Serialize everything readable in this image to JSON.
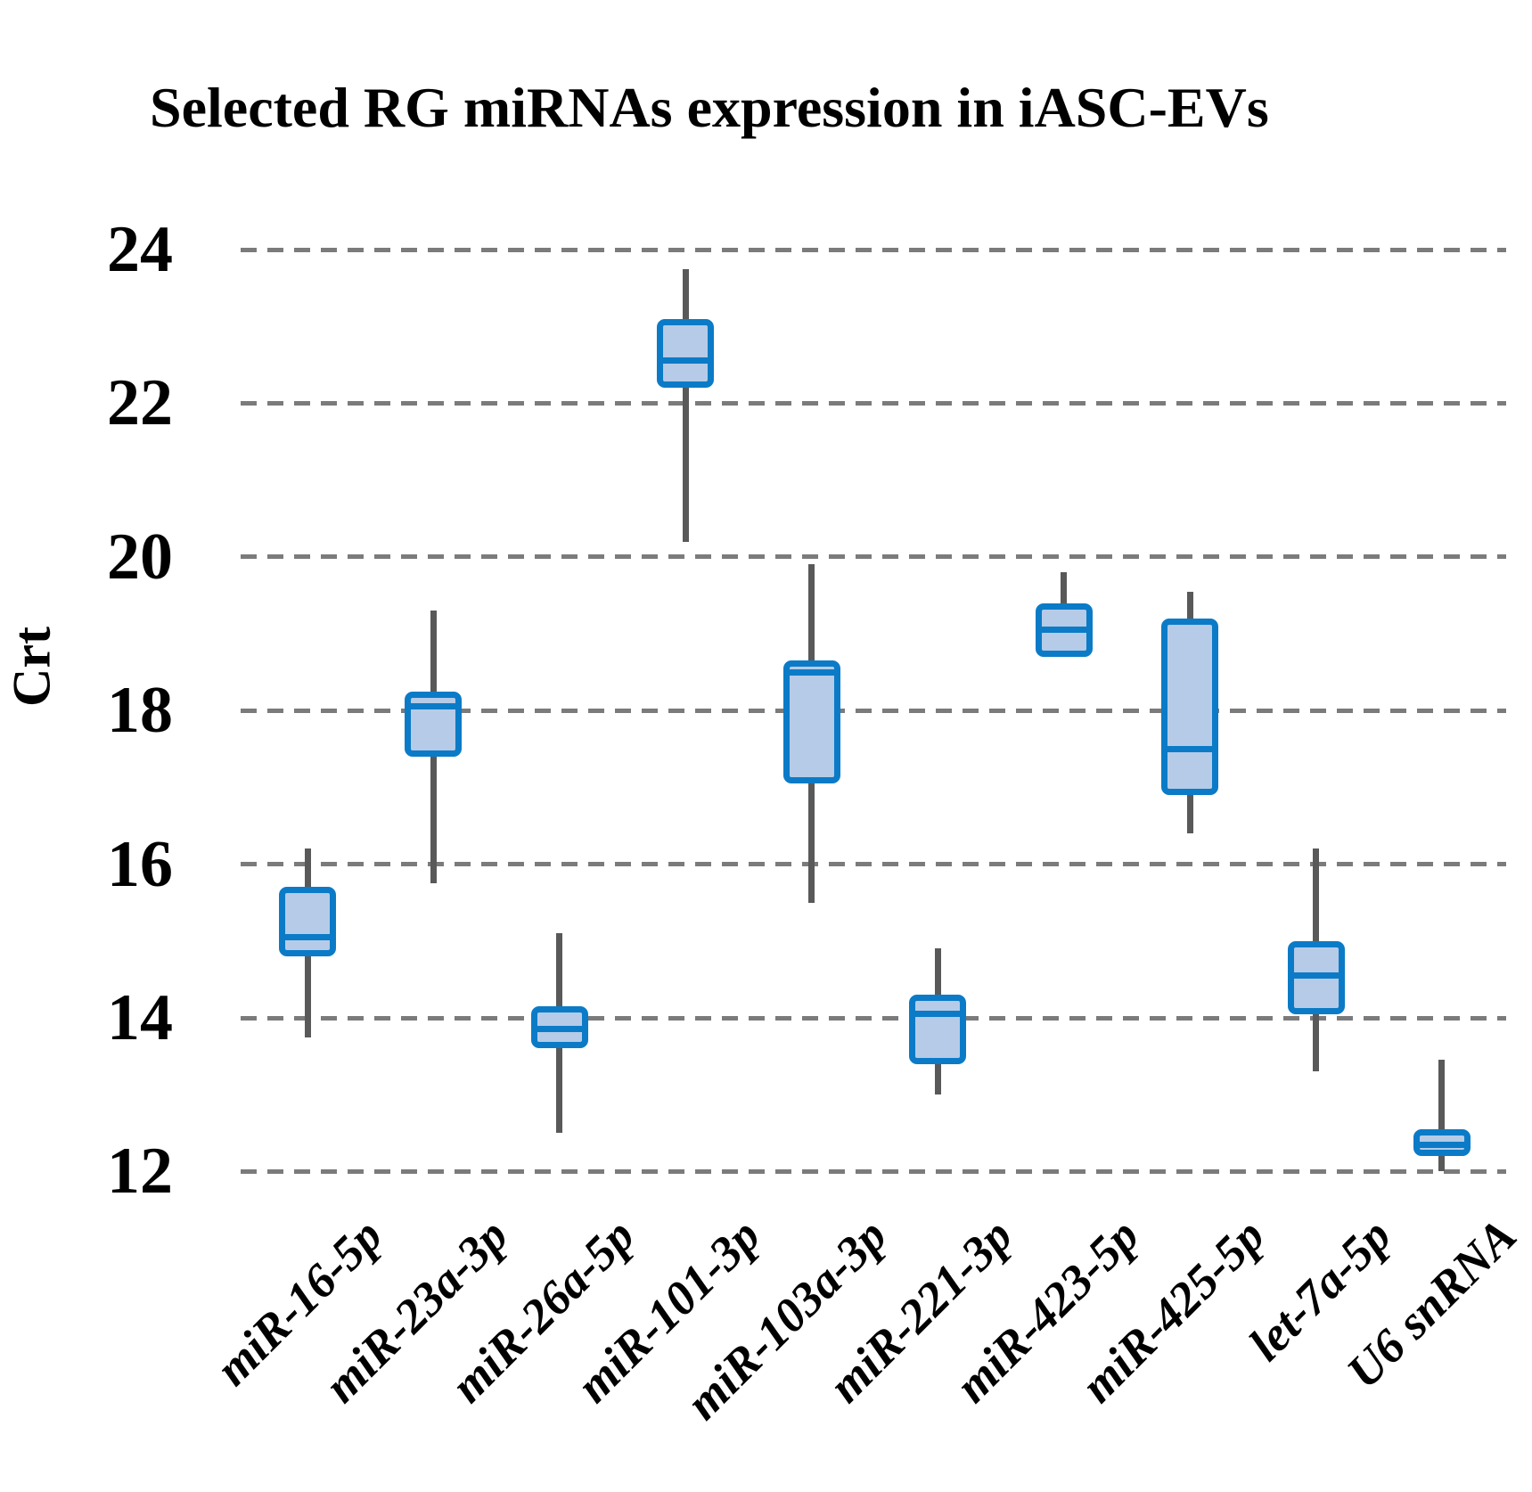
{
  "chart_data": {
    "type": "boxplot",
    "title": "Selected RG miRNAs expression in iASC-EVs",
    "ylabel": "Crt",
    "xlabel": "",
    "ylim": [
      11.5,
      24.5
    ],
    "yticks": [
      24,
      22,
      20,
      18,
      16,
      14,
      12
    ],
    "grid": "horizontal-dashed",
    "legend": "none",
    "categories": [
      "miR-16-5p",
      "miR-23a-3p",
      "miR-26a-5p",
      "miR-101-3p",
      "miR-103a-3p",
      "miR-221-3p",
      "miR-423-5p",
      "miR-425-5p",
      "let-7a-5p",
      "U6 snRNA"
    ],
    "boxes": [
      {
        "label": "miR-16-5p",
        "whisker_low": 13.75,
        "q1": 14.8,
        "median": 15.05,
        "q3": 15.7,
        "whisker_high": 16.2
      },
      {
        "label": "miR-23a-3p",
        "whisker_low": 15.75,
        "q1": 17.4,
        "median": 18.05,
        "q3": 18.25,
        "whisker_high": 19.3
      },
      {
        "label": "miR-26a-5p",
        "whisker_low": 12.5,
        "q1": 13.6,
        "median": 13.85,
        "q3": 14.15,
        "whisker_high": 15.1
      },
      {
        "label": "miR-101-3p",
        "whisker_low": 20.2,
        "q1": 22.2,
        "median": 22.55,
        "q3": 23.1,
        "whisker_high": 23.75
      },
      {
        "label": "miR-103a-3p",
        "whisker_low": 15.5,
        "q1": 17.05,
        "median": 18.5,
        "q3": 18.65,
        "whisker_high": 19.9
      },
      {
        "label": "miR-221-3p",
        "whisker_low": 13.0,
        "q1": 13.4,
        "median": 14.05,
        "q3": 14.3,
        "whisker_high": 14.9
      },
      {
        "label": "miR-423-5p",
        "whisker_low": 18.7,
        "q1": 18.7,
        "median": 19.05,
        "q3": 19.4,
        "whisker_high": 19.8
      },
      {
        "label": "miR-425-5p",
        "whisker_low": 16.4,
        "q1": 16.9,
        "median": 17.5,
        "q3": 19.2,
        "whisker_high": 19.55
      },
      {
        "label": "let-7a-5p",
        "whisker_low": 13.3,
        "q1": 14.05,
        "median": 14.55,
        "q3": 15.0,
        "whisker_high": 16.2
      },
      {
        "label": "U6 snRNA",
        "whisker_low": 12.0,
        "q1": 12.2,
        "median": 12.35,
        "q3": 12.55,
        "whisker_high": 13.45
      }
    ],
    "colors": {
      "box_fill": "#b6cbe7",
      "box_border": "#0b7bc7",
      "median": "#0b7bc7",
      "whisker": "#595959",
      "gridline": "#7b7b7b",
      "text": "#000000",
      "background": "#ffffff"
    }
  }
}
